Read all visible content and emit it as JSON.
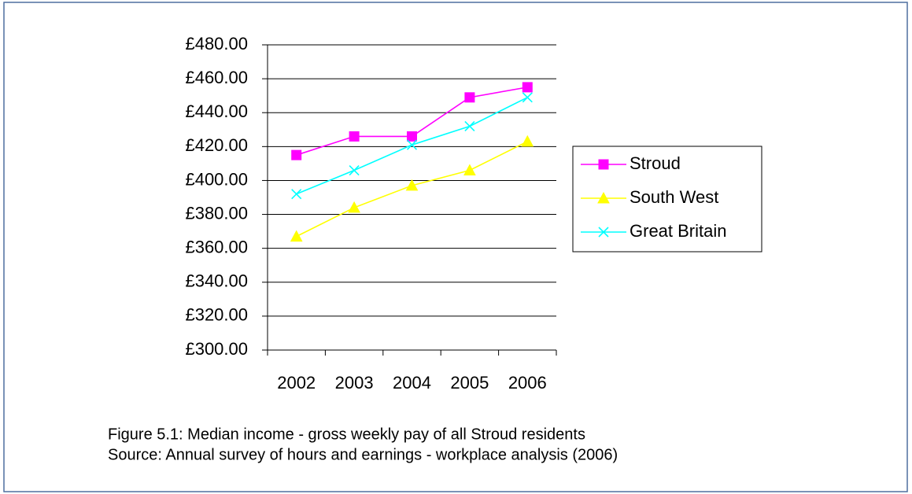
{
  "chart_data": {
    "type": "line",
    "categories": [
      "2002",
      "2003",
      "2004",
      "2005",
      "2006"
    ],
    "series": [
      {
        "name": "Stroud",
        "color": "#ff00ff",
        "marker": "square",
        "values": [
          415,
          426,
          426,
          449,
          455
        ]
      },
      {
        "name": "South West",
        "color": "#ffff00",
        "marker": "triangle",
        "values": [
          367,
          384,
          397,
          406,
          423
        ]
      },
      {
        "name": "Great Britain",
        "color": "#00ffff",
        "marker": "x",
        "values": [
          392,
          406,
          421,
          432,
          449
        ]
      }
    ],
    "ylim": [
      300,
      480
    ],
    "yticks": [
      {
        "value": 300,
        "label": "£300.00"
      },
      {
        "value": 320,
        "label": "£320.00"
      },
      {
        "value": 340,
        "label": "£340.00"
      },
      {
        "value": 360,
        "label": "£360.00"
      },
      {
        "value": 380,
        "label": "£380.00"
      },
      {
        "value": 400,
        "label": "£400.00"
      },
      {
        "value": 420,
        "label": "£420.00"
      },
      {
        "value": 440,
        "label": "£440.00"
      },
      {
        "value": 460,
        "label": "£460.00"
      },
      {
        "value": 480,
        "label": "£480.00"
      }
    ],
    "grid": true,
    "legend": "right",
    "annotations": [
      "Figure 5.1: Median income - gross weekly pay of all Stroud residents",
      "Source: Annual survey of hours and earnings - workplace analysis (2006)"
    ]
  }
}
